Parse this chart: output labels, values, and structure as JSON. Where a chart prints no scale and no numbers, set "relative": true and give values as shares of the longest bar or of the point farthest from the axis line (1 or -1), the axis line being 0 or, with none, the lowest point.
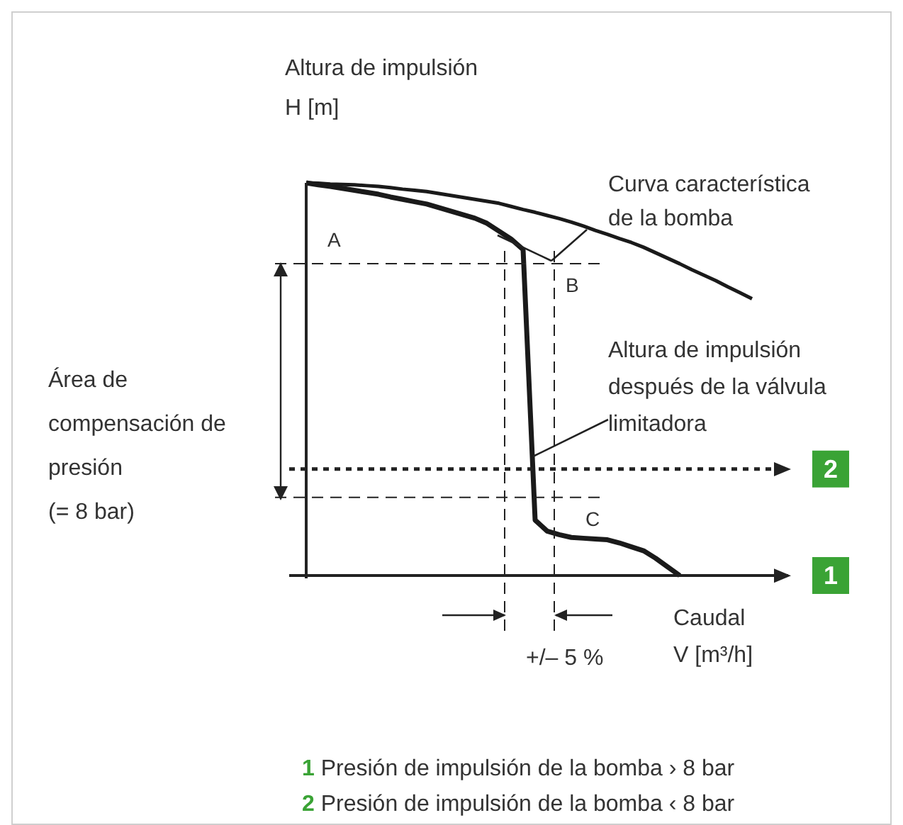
{
  "chart_data": {
    "type": "line",
    "relative": true,
    "legend": false,
    "marker": "none",
    "line_style": "solid",
    "xlabel": "Caudal\nV [m³/h]",
    "ylabel": "Altura de impulsión\nH [m]",
    "categories": [
      null,
      null,
      null,
      null,
      null,
      null,
      null,
      null,
      null,
      null,
      null,
      null,
      null,
      null,
      null,
      null,
      null,
      null,
      null,
      null,
      null,
      null,
      null,
      null,
      null,
      null,
      null,
      null,
      null,
      null,
      null,
      null,
      null,
      null,
      null,
      null,
      null,
      null,
      null,
      null,
      null
    ],
    "series": [
      {
        "color": "#1a1a1a",
        "values": [
          1,
          0.999,
          0.997,
          0.996,
          0.995,
          0.993,
          0.991,
          0.988,
          0.984,
          0.981,
          0.978,
          0.973,
          0.968,
          0.963,
          0.958,
          0.953,
          0.948,
          0.94,
          0.932,
          0.925,
          0.917,
          0.909,
          0.9,
          0.89,
          0.879,
          0.869,
          0.858,
          0.848,
          0.836,
          0.822,
          0.808,
          0.794,
          0.779,
          0.765,
          0.751,
          0.735,
          0.72,
          0.705,
          null,
          null,
          null
        ]
      },
      {
        "color": "#1a1a1a",
        "values": [
          1,
          0.995,
          0.991,
          0.986,
          0.981,
          0.976,
          0.971,
          0.964,
          0.958,
          0.952,
          0.946,
          0.937,
          0.928,
          0.919,
          0.91,
          0.897,
          0.877,
          0.857,
          0.83,
          0.141,
          0.113,
          0.104,
          0.097,
          0.095,
          0.093,
          0.091,
          0.083,
          0.073,
          0.063,
          0.044,
          0.022,
          0,
          null,
          null,
          null,
          null,
          null,
          null,
          null,
          null,
          null
        ]
      }
    ],
    "ref_lines": [
      {
        "axis": "y",
        "value": 0.794,
        "line_style": "dashed"
      },
      {
        "axis": "y",
        "value": 0.199,
        "line_style": "dashed"
      },
      {
        "axis": "y",
        "value": 0.271,
        "line_style": "dotted"
      }
    ],
    "annotations": [
      "A",
      "B",
      "C",
      "Curva característica\nde la bomba",
      "Altura de impulsión\ndespués de la válvula\nlimitadora",
      "Área de\ncompensación de\npresión\n(= 8 bar)",
      "+/– 5 %",
      "1 Presión de impulsión de la bomba › 8 bar",
      "2 Presión de impulsión de la bomba ‹ 8 bar",
      "2",
      "1"
    ]
  }
}
